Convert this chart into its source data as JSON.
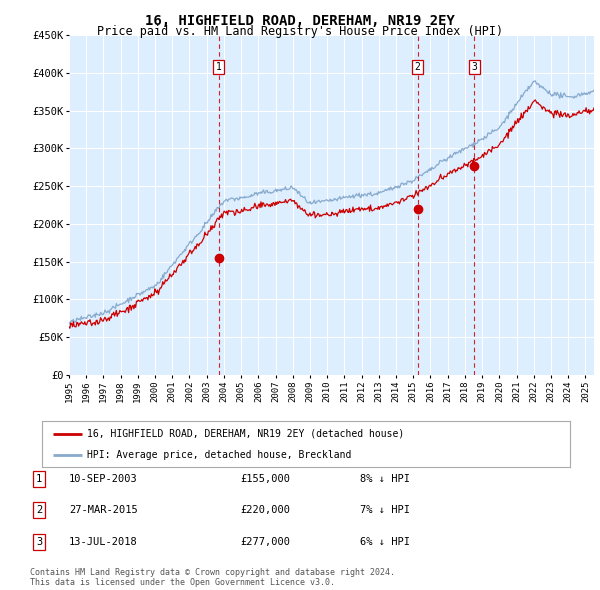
{
  "title": "16, HIGHFIELD ROAD, DEREHAM, NR19 2EY",
  "subtitle": "Price paid vs. HM Land Registry's House Price Index (HPI)",
  "ylim": [
    0,
    450000
  ],
  "xlim_start": 1995.0,
  "xlim_end": 2025.5,
  "yticks": [
    0,
    50000,
    100000,
    150000,
    200000,
    250000,
    300000,
    350000,
    400000,
    450000
  ],
  "ytick_labels": [
    "£0",
    "£50K",
    "£100K",
    "£150K",
    "£200K",
    "£250K",
    "£300K",
    "£350K",
    "£400K",
    "£450K"
  ],
  "xticks": [
    1995,
    1996,
    1997,
    1998,
    1999,
    2000,
    2001,
    2002,
    2003,
    2004,
    2005,
    2006,
    2007,
    2008,
    2009,
    2010,
    2011,
    2012,
    2013,
    2014,
    2015,
    2016,
    2017,
    2018,
    2019,
    2020,
    2021,
    2022,
    2023,
    2024,
    2025
  ],
  "background_color": "#ffffff",
  "plot_bg_color": "#ddeeff",
  "grid_color": "#ffffff",
  "red_line_color": "#cc0000",
  "blue_line_color": "#88aacc",
  "transactions": [
    {
      "num": 1,
      "date": "10-SEP-2003",
      "price": 155000,
      "year": 2003.7,
      "label": "10-SEP-2003",
      "amount": "£155,000",
      "pct": "8% ↓ HPI"
    },
    {
      "num": 2,
      "date": "27-MAR-2015",
      "price": 220000,
      "year": 2015.25,
      "label": "27-MAR-2015",
      "amount": "£220,000",
      "pct": "7% ↓ HPI"
    },
    {
      "num": 3,
      "date": "13-JUL-2018",
      "price": 277000,
      "year": 2018.55,
      "label": "13-JUL-2018",
      "amount": "£277,000",
      "pct": "6% ↓ HPI"
    }
  ],
  "legend_line1": "16, HIGHFIELD ROAD, DEREHAM, NR19 2EY (detached house)",
  "legend_line2": "HPI: Average price, detached house, Breckland",
  "footer1": "Contains HM Land Registry data © Crown copyright and database right 2024.",
  "footer2": "This data is licensed under the Open Government Licence v3.0."
}
